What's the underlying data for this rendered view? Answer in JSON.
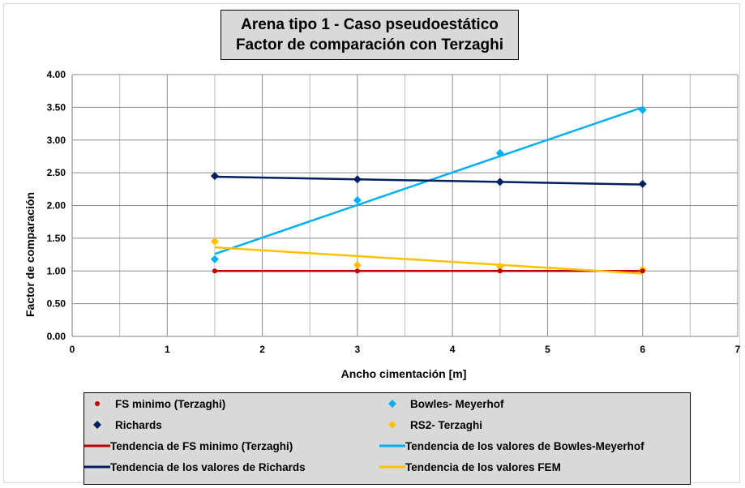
{
  "chart_data": {
    "type": "scatter",
    "title_lines": [
      "Arena tipo 1 - Caso pseudoestático",
      "Factor de comparación con Terzaghi"
    ],
    "xlabel": "Ancho cimentación [m]",
    "ylabel": "Factor de comparación",
    "xlim": [
      0,
      7
    ],
    "ylim": [
      0,
      4
    ],
    "x_ticks": [
      0,
      1,
      2,
      3,
      4,
      5,
      6,
      7
    ],
    "x_tick_labels": [
      "0",
      "1",
      "2",
      "3",
      "4",
      "5",
      "6",
      "7"
    ],
    "y_ticks": [
      0,
      0.5,
      1,
      1.5,
      2,
      2.5,
      3,
      3.5,
      4
    ],
    "y_tick_labels": [
      "0.00",
      "0.50",
      "1.00",
      "1.50",
      "2.00",
      "2.50",
      "3.00",
      "3.50",
      "4.00"
    ],
    "grid": true,
    "legend_position": "bottom",
    "series": [
      {
        "name": "FS minimo (Terzaghi)",
        "marker": "circle",
        "color": "#c00000",
        "x": [
          1.5,
          3,
          4.5,
          6
        ],
        "y": [
          1.0,
          1.0,
          1.0,
          1.0
        ]
      },
      {
        "name": "Bowles- Meyerhof",
        "marker": "diamond",
        "color": "#00b0f0",
        "x": [
          1.5,
          3,
          4.5,
          6
        ],
        "y": [
          1.18,
          2.08,
          2.8,
          3.46
        ]
      },
      {
        "name": "Richards",
        "marker": "diamond",
        "color": "#002060",
        "x": [
          1.5,
          3,
          4.5,
          6
        ],
        "y": [
          2.45,
          2.4,
          2.36,
          2.33
        ]
      },
      {
        "name": "RS2- Terzaghi",
        "marker": "diamond",
        "color": "#ffc000",
        "x": [
          1.5,
          3,
          4.5,
          6
        ],
        "y": [
          1.45,
          1.09,
          1.07,
          1.02
        ]
      }
    ],
    "trendlines": [
      {
        "name": "Tendencia de FS minimo (Terzaghi)",
        "color": "#c00000",
        "x": [
          1.5,
          6
        ],
        "y": [
          1.0,
          1.0
        ]
      },
      {
        "name": "Tendencia de los valores de Bowles-Meyerhof",
        "color": "#00b0f0",
        "x": [
          1.5,
          6
        ],
        "y": [
          1.26,
          3.5
        ]
      },
      {
        "name": "Tendencia de los valores de Richards",
        "color": "#002060",
        "x": [
          1.5,
          6
        ],
        "y": [
          2.44,
          2.32
        ]
      },
      {
        "name": "Tendencia de los valores FEM",
        "color": "#ffc000",
        "x": [
          1.5,
          6
        ],
        "y": [
          1.36,
          0.96
        ]
      }
    ]
  }
}
